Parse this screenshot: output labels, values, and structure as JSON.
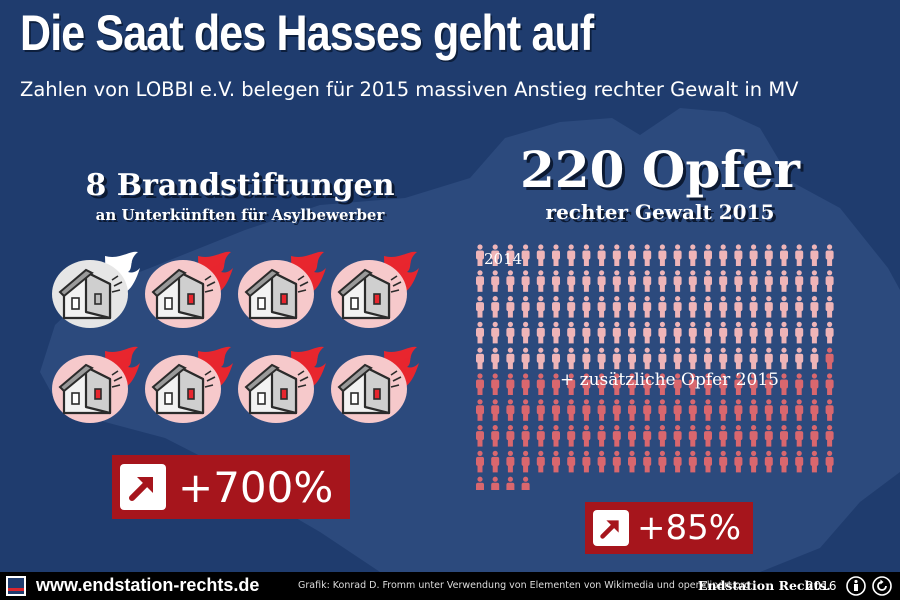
{
  "title": "Die Saat des Hasses geht auf",
  "subtitle": "Zahlen von LOBBI e.V. belegen für 2015 massiven Anstieg rechter Gewalt in MV",
  "arson": {
    "headline": "8 Brandstiftungen",
    "subline": "an Unterkünften für Asylbewerber",
    "houses_total": 8,
    "houses_2014": 1,
    "change": "+700%"
  },
  "victims": {
    "headline": "220 Opfer",
    "subline": "rechter Gewalt 2015",
    "label_2014": "2014",
    "label_additional": "+ zusätzliche Opfer 2015",
    "total_2015": 220,
    "count_2014": 119,
    "change": "+85%"
  },
  "footer": {
    "url": "www.endstation-rechts.de",
    "credit": "Grafik: Konrad D. Fromm unter Verwendung von Elementen von Wikimedia und openclipart.org",
    "brand": "Endstation Rechts.",
    "year": "2016"
  },
  "colors": {
    "background": "#1f3c6e",
    "map": "#2c4a7d",
    "person_2014": "#efb5b8",
    "person_additional": "#d9676e",
    "badge": "#a6151c",
    "flame": "#e8262e"
  },
  "icons": [
    "up-right-arrow-icon",
    "burning-house-icon",
    "person-icon",
    "cc-by-icon",
    "cc-sa-icon"
  ]
}
